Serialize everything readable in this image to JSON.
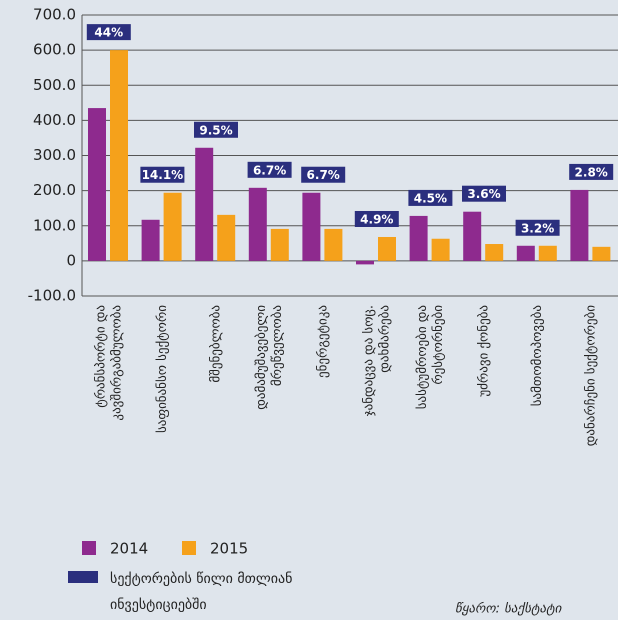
{
  "chart_data": {
    "type": "bar",
    "categories": [
      [
        "ტრანსპორტი და",
        "კავშირგაბმულობა"
      ],
      [
        "საფინანსო სექტორი"
      ],
      [
        "მშენებლობა"
      ],
      [
        "დამამუშავებელი",
        "მრეწველობა"
      ],
      [
        "ენერგეტიკა"
      ],
      [
        "ჯანდაცვა და სოც.",
        "დახმარება"
      ],
      [
        "სასტუმროები და",
        "რესტორნები"
      ],
      [
        "უძრავი ქონება"
      ],
      [
        "სამთომოპოვება"
      ],
      [
        "დანარჩენი სექტორები"
      ]
    ],
    "series": [
      {
        "name": "2014",
        "color": "#8e2a8e",
        "values": [
          435,
          117,
          322,
          208,
          194,
          -10,
          128,
          140,
          43,
          202
        ]
      },
      {
        "name": "2015",
        "color": "#f5a11b",
        "values": [
          600,
          194,
          131,
          91,
          91,
          68,
          63,
          48,
          43,
          40
        ]
      }
    ],
    "share": {
      "name": [
        "სექტორების წილი მთლიან",
        "ინვესტიციებში"
      ],
      "color": "#2b2f7e",
      "values": [
        44,
        14.1,
        9.5,
        6.7,
        6.7,
        4.9,
        4.5,
        3.6,
        3.2,
        2.8
      ],
      "value_labels": [
        "44%",
        "14.1%",
        "9.5%",
        "6.7%",
        "6.7%",
        "4.9%",
        "4.5%",
        "3.6%",
        "3.2%",
        "2.8%"
      ]
    },
    "ylim": [
      -100,
      700
    ],
    "yticks": [
      {
        "value": -100,
        "label": "-100.0"
      },
      0,
      {
        "value": 100,
        "label": "100.0"
      },
      {
        "value": 200,
        "label": "200.0"
      },
      {
        "value": 300,
        "label": "300.0"
      },
      {
        "value": 400,
        "label": "400.0"
      },
      {
        "value": 500,
        "label": "500.0"
      },
      {
        "value": 600,
        "label": "600.0"
      },
      {
        "value": 700,
        "label": "700.0"
      }
    ],
    "grid": true,
    "source": "წყარო: საქსტატი"
  }
}
